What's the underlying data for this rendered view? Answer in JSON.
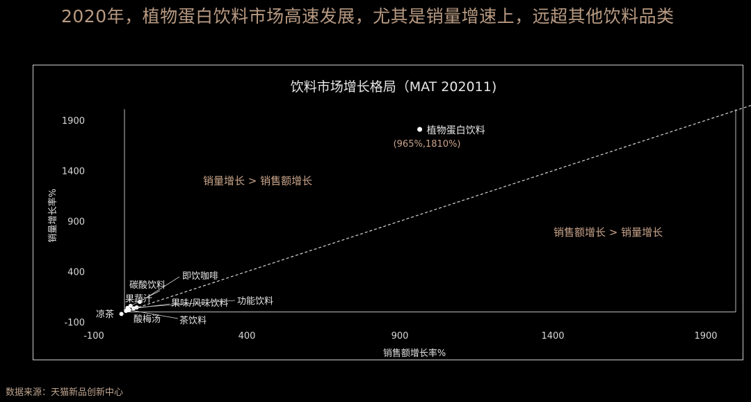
{
  "headline": "2020年，植物蛋白饮料市场高速发展，尤其是销量增速上，远超其他饮料品类",
  "source": "数据来源：天猫新品创新中心",
  "colors": {
    "background": "#000000",
    "accent_text": "#c9a48a",
    "axis_text": "#d9d9d9",
    "point": "#ffffff"
  },
  "chart_data": {
    "type": "scatter",
    "title": "饮料市场增长格局（MAT 202011)",
    "xlabel": "销售额增长率%",
    "ylabel": "销量增长率%",
    "xlim": [
      -100,
      2100
    ],
    "ylim": [
      -100,
      2050
    ],
    "x_ticks": [
      "-100",
      "400",
      "900",
      "1400",
      "1900"
    ],
    "x_tick_values": [
      -100,
      400,
      900,
      1400,
      1900
    ],
    "y_ticks": [
      "-100",
      "400",
      "900",
      "1400",
      "1900"
    ],
    "y_tick_values": [
      -100,
      400,
      900,
      1400,
      1900
    ],
    "grid": false,
    "points": [
      {
        "name": "植物蛋白饮料",
        "x": 965,
        "y": 1810,
        "value_label": "(965%,1810%)"
      },
      {
        "name": "即饮咖啡",
        "x": 50,
        "y": 100
      },
      {
        "name": "碳酸饮料",
        "x": 20,
        "y": 60
      },
      {
        "name": "果蔬汁",
        "x": 10,
        "y": 40
      },
      {
        "name": "果味/风味饮料",
        "x": 30,
        "y": 35
      },
      {
        "name": "功能饮料",
        "x": 40,
        "y": 45
      },
      {
        "name": "酸梅汤",
        "x": 5,
        "y": 10
      },
      {
        "name": "茶饮料",
        "x": 15,
        "y": 20
      },
      {
        "name": "凉茶",
        "x": -10,
        "y": -20
      }
    ],
    "annotations": [
      {
        "text": "销量增长 > 销售额增长",
        "region": "upper-left"
      },
      {
        "text": "销售额增长 > 销量增长",
        "region": "lower-right"
      }
    ],
    "reference_line": "y = x"
  }
}
